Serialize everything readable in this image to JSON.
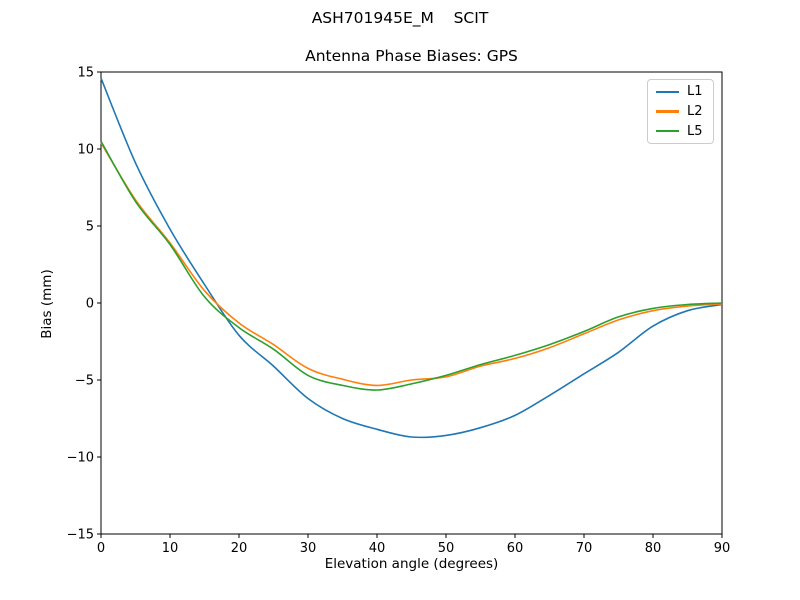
{
  "figure": {
    "suptitle": "ASH701945E_M    SCIT"
  },
  "chart_data": {
    "type": "line",
    "title": "Antenna Phase Biases: GPS",
    "xlabel": "Elevation angle (degrees)",
    "ylabel": "Bias (mm)",
    "xlim": [
      0,
      90
    ],
    "ylim": [
      -15,
      15
    ],
    "xticks": [
      0,
      10,
      20,
      30,
      40,
      50,
      60,
      70,
      80,
      90
    ],
    "yticks": [
      -15,
      -10,
      -5,
      0,
      5,
      10,
      15
    ],
    "grid": false,
    "legend": {
      "position": "upper right",
      "entries": [
        "L1",
        "L2",
        "L5"
      ]
    },
    "x": [
      0,
      5,
      10,
      15,
      20,
      25,
      30,
      35,
      40,
      45,
      50,
      55,
      60,
      65,
      70,
      75,
      80,
      85,
      90
    ],
    "series": [
      {
        "name": "L1",
        "color": "#1f77b4",
        "values": [
          14.6,
          9.1,
          4.8,
          1.2,
          -2.1,
          -4.1,
          -6.2,
          -7.5,
          -8.2,
          -8.7,
          -8.6,
          -8.1,
          -7.3,
          -6.0,
          -4.6,
          -3.2,
          -1.5,
          -0.5,
          -0.1
        ]
      },
      {
        "name": "L2",
        "color": "#ff7f0e",
        "values": [
          10.4,
          6.7,
          3.9,
          0.8,
          -1.3,
          -2.7,
          -4.25,
          -4.95,
          -5.35,
          -5.0,
          -4.8,
          -4.1,
          -3.6,
          -2.9,
          -2.0,
          -1.1,
          -0.5,
          -0.2,
          -0.05
        ]
      },
      {
        "name": "L5",
        "color": "#2ca02c",
        "values": [
          10.5,
          6.6,
          3.8,
          0.4,
          -1.6,
          -3.0,
          -4.7,
          -5.35,
          -5.65,
          -5.25,
          -4.7,
          -4.0,
          -3.4,
          -2.7,
          -1.85,
          -0.9,
          -0.35,
          -0.1,
          0.0
        ]
      }
    ]
  }
}
